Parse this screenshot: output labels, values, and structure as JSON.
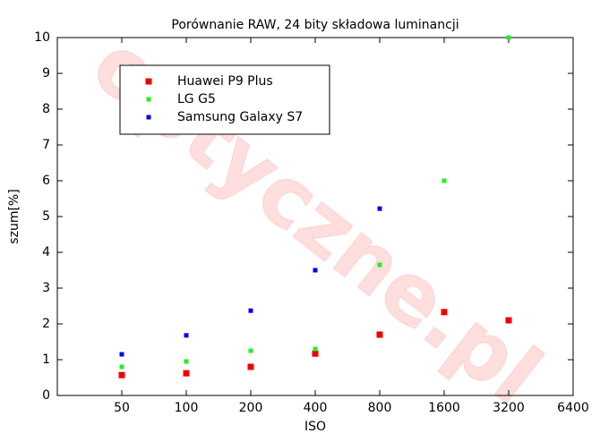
{
  "chart_data": {
    "type": "scatter",
    "title": "Porównanie RAW, 24 bity składowa luminancji",
    "xlabel": "ISO",
    "ylabel": "szum[%]",
    "watermark": "optyczne.pl",
    "xscale": "log",
    "xlim": [
      25,
      6400
    ],
    "xticks": [
      50,
      100,
      200,
      400,
      800,
      1600,
      3200,
      6400
    ],
    "ylim": [
      0,
      10
    ],
    "yticks": [
      0,
      1,
      2,
      3,
      4,
      5,
      6,
      7,
      8,
      9,
      10
    ],
    "legend": "upper left",
    "series": [
      {
        "name": "Huawei P9 Plus",
        "color": "#ee0000",
        "marker_size": 7,
        "x": [
          50,
          100,
          200,
          400,
          800,
          1600,
          3200
        ],
        "values": [
          0.57,
          0.62,
          0.8,
          1.17,
          1.7,
          2.33,
          2.1
        ]
      },
      {
        "name": "LG G5",
        "color": "#22ee22",
        "marker_size": 5,
        "x": [
          50,
          100,
          200,
          400,
          800,
          1600,
          3200
        ],
        "values": [
          0.8,
          0.95,
          1.25,
          1.3,
          3.65,
          6.0,
          10.0
        ]
      },
      {
        "name": "Samsung Galaxy S7",
        "color": "#0000ee",
        "marker_size": 5,
        "x": [
          50,
          100,
          200,
          400,
          800
        ],
        "values": [
          1.15,
          1.68,
          2.37,
          3.5,
          5.22
        ]
      }
    ]
  }
}
